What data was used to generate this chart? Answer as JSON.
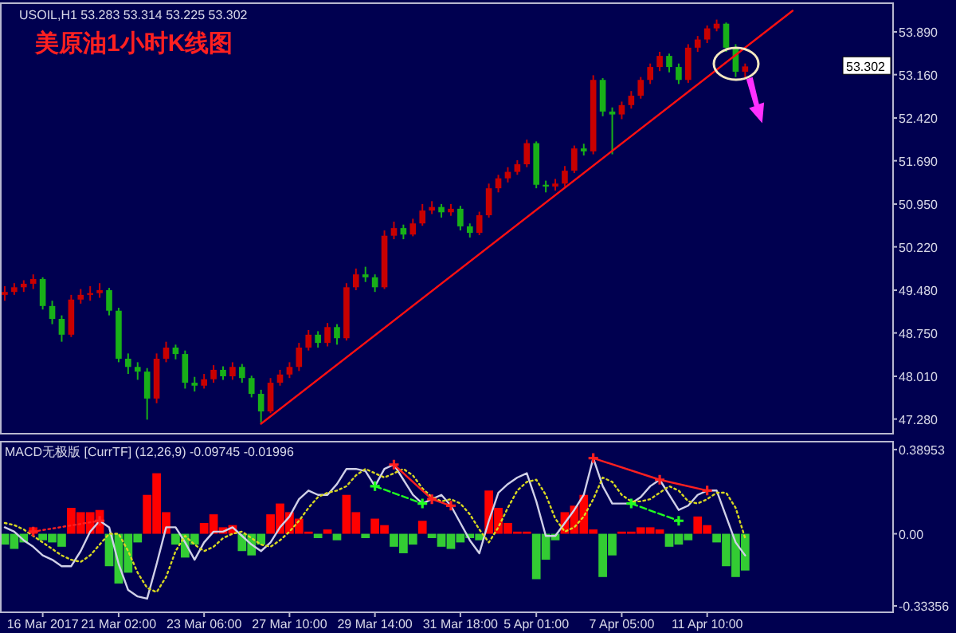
{
  "chart_data": [
    {
      "type": "candlestick",
      "title": "美原油1小时K线图",
      "subtitle": "USOIL,H1 53.283 53.314 53.225 53.302",
      "categories": [
        null,
        null,
        null,
        null,
        null,
        null,
        null,
        null,
        null,
        null,
        null,
        null,
        null,
        null,
        null,
        null,
        null,
        null,
        null,
        null,
        null,
        null,
        null,
        null,
        null,
        null,
        null,
        null,
        null,
        null,
        null,
        null,
        null,
        null,
        null,
        null,
        null,
        null,
        null,
        null,
        null,
        null,
        null,
        null,
        null,
        null,
        null,
        null,
        null,
        null,
        null,
        null,
        null,
        null,
        null,
        null,
        null,
        null,
        null,
        null,
        null,
        null,
        null,
        null,
        null,
        null,
        null,
        null,
        null,
        null,
        null,
        null,
        null,
        null,
        null,
        null,
        null,
        null,
        null,
        null,
        null,
        null,
        null,
        null,
        null,
        null,
        null,
        null,
        null,
        null,
        null,
        null,
        null,
        null
      ],
      "ohlc": [
        [
          49.4,
          49.55,
          49.3,
          49.45
        ],
        [
          49.45,
          49.6,
          49.4,
          49.53
        ],
        [
          49.53,
          49.65,
          49.45,
          49.59
        ],
        [
          49.59,
          49.75,
          49.5,
          49.67
        ],
        [
          49.67,
          49.7,
          49.15,
          49.21
        ],
        [
          49.21,
          49.3,
          48.9,
          48.99
        ],
        [
          48.99,
          49.05,
          48.6,
          48.72
        ],
        [
          48.72,
          49.4,
          48.68,
          49.32
        ],
        [
          49.32,
          49.5,
          49.25,
          49.4
        ],
        [
          49.4,
          49.55,
          49.3,
          49.43
        ],
        [
          49.43,
          49.6,
          49.35,
          49.48
        ],
        [
          49.48,
          49.52,
          49.05,
          49.13
        ],
        [
          49.13,
          49.18,
          48.25,
          48.31
        ],
        [
          48.31,
          48.4,
          48.05,
          48.17
        ],
        [
          48.17,
          48.25,
          47.95,
          48.09
        ],
        [
          48.09,
          48.15,
          47.27,
          47.63
        ],
        [
          47.63,
          48.4,
          47.55,
          48.31
        ],
        [
          48.31,
          48.6,
          48.25,
          48.5
        ],
        [
          48.5,
          48.55,
          48.3,
          48.39
        ],
        [
          48.39,
          48.45,
          47.8,
          47.9
        ],
        [
          47.9,
          48.0,
          47.75,
          47.85
        ],
        [
          47.85,
          48.05,
          47.8,
          47.96
        ],
        [
          47.96,
          48.2,
          47.9,
          48.12
        ],
        [
          48.12,
          48.18,
          47.95,
          48.01
        ],
        [
          48.01,
          48.25,
          47.95,
          48.17
        ],
        [
          48.17,
          48.22,
          47.9,
          47.98
        ],
        [
          47.98,
          48.02,
          47.65,
          47.71
        ],
        [
          47.71,
          47.78,
          47.22,
          47.41
        ],
        [
          47.41,
          47.98,
          47.38,
          47.9
        ],
        [
          47.9,
          48.12,
          47.85,
          48.04
        ],
        [
          48.04,
          48.25,
          47.98,
          48.17
        ],
        [
          48.17,
          48.58,
          48.1,
          48.5
        ],
        [
          48.5,
          48.8,
          48.45,
          48.72
        ],
        [
          48.72,
          48.78,
          48.5,
          48.58
        ],
        [
          48.58,
          48.92,
          48.52,
          48.85
        ],
        [
          48.85,
          48.9,
          48.55,
          48.66
        ],
        [
          48.66,
          49.6,
          48.62,
          49.53
        ],
        [
          49.53,
          49.85,
          49.48,
          49.75
        ],
        [
          49.75,
          49.88,
          49.62,
          49.7
        ],
        [
          49.7,
          49.75,
          49.45,
          49.53
        ],
        [
          49.53,
          50.5,
          49.5,
          50.41
        ],
        [
          50.41,
          50.65,
          50.35,
          50.54
        ],
        [
          50.54,
          50.6,
          50.35,
          50.43
        ],
        [
          50.43,
          50.7,
          50.4,
          50.62
        ],
        [
          50.62,
          50.95,
          50.58,
          50.84
        ],
        [
          50.84,
          51.0,
          50.78,
          50.9
        ],
        [
          50.9,
          50.95,
          50.72,
          50.81
        ],
        [
          50.81,
          50.95,
          50.75,
          50.87
        ],
        [
          50.87,
          50.92,
          50.5,
          50.57
        ],
        [
          50.57,
          50.62,
          50.38,
          50.46
        ],
        [
          50.46,
          50.82,
          50.42,
          50.76
        ],
        [
          50.76,
          51.3,
          50.72,
          51.22
        ],
        [
          51.22,
          51.45,
          51.15,
          51.39
        ],
        [
          51.39,
          51.58,
          51.32,
          51.5
        ],
        [
          51.5,
          51.7,
          51.45,
          51.63
        ],
        [
          51.63,
          52.05,
          51.58,
          51.99
        ],
        [
          51.99,
          52.02,
          51.22,
          51.28
        ],
        [
          51.28,
          51.35,
          51.15,
          51.25
        ],
        [
          51.25,
          51.38,
          51.18,
          51.3
        ],
        [
          51.3,
          51.6,
          51.25,
          51.52
        ],
        [
          51.52,
          51.95,
          51.48,
          51.9
        ],
        [
          51.9,
          51.98,
          51.78,
          51.85
        ],
        [
          51.85,
          53.15,
          51.8,
          53.07
        ],
        [
          53.07,
          53.1,
          52.45,
          52.53
        ],
        [
          52.53,
          52.6,
          51.8,
          52.48
        ],
        [
          52.48,
          52.7,
          52.4,
          52.64
        ],
        [
          52.64,
          52.88,
          52.58,
          52.8
        ],
        [
          52.8,
          53.12,
          52.75,
          53.07
        ],
        [
          53.07,
          53.35,
          53.0,
          53.29
        ],
        [
          53.29,
          53.55,
          53.22,
          53.48
        ],
        [
          53.48,
          53.52,
          53.2,
          53.29
        ],
        [
          53.29,
          53.35,
          53.0,
          53.07
        ],
        [
          53.07,
          53.68,
          53.02,
          53.62
        ],
        [
          53.62,
          53.82,
          53.55,
          53.76
        ],
        [
          53.76,
          54.0,
          53.7,
          53.95
        ],
        [
          53.95,
          54.1,
          53.9,
          54.03
        ],
        [
          54.03,
          54.05,
          53.55,
          53.62
        ],
        [
          53.62,
          53.68,
          53.12,
          53.21
        ],
        [
          53.21,
          53.35,
          53.1,
          53.3
        ],
        null,
        null,
        null,
        null,
        null,
        null,
        null,
        null,
        null,
        null,
        null,
        null,
        null,
        null,
        null
      ],
      "series": [
        {
          "type": "line",
          "color": "#ff1010",
          "values": [
            null,
            null,
            null,
            null,
            null,
            null,
            null,
            null,
            null,
            null,
            null,
            null,
            null,
            null,
            null,
            null,
            null,
            null,
            null,
            null,
            null,
            null,
            null,
            null,
            null,
            null,
            null,
            47.2,
            null,
            null,
            null,
            null,
            null,
            null,
            null,
            null,
            null,
            null,
            null,
            null,
            null,
            null,
            null,
            null,
            null,
            null,
            null,
            null,
            null,
            null,
            null,
            null,
            null,
            null,
            null,
            null,
            null,
            null,
            null,
            null,
            null,
            null,
            null,
            null,
            null,
            null,
            null,
            null,
            null,
            null,
            null,
            null,
            null,
            null,
            null,
            null,
            null,
            null,
            null,
            null,
            null,
            null,
            null,
            54.25,
            null,
            null,
            null,
            null,
            null,
            null,
            null,
            null,
            null,
            null
          ]
        }
      ],
      "ylim": [
        47.03,
        54.38
      ],
      "yticks": [
        {
          "value": 53.89,
          "label": "53.890"
        },
        {
          "value": 53.16,
          "label": "53.160"
        },
        {
          "value": 52.42,
          "label": "52.420"
        },
        {
          "value": 51.69,
          "label": "51.690"
        },
        {
          "value": 50.95,
          "label": "50.950"
        },
        {
          "value": 50.22,
          "label": "50.220"
        },
        {
          "value": 49.48,
          "label": "49.480"
        },
        {
          "value": 48.75,
          "label": "48.750"
        },
        {
          "value": 48.01,
          "label": "48.010"
        },
        {
          "value": 47.28,
          "label": "47.280"
        }
      ],
      "annotations": [
        {
          "text": "53.302",
          "y": 53.302
        }
      ]
    },
    {
      "type": "bar",
      "title": "MACD无极版 [CurrTF] (12,26,9) -0.09745 -0.01996",
      "categories": [
        null,
        null,
        null,
        null,
        "16 Mar 2017",
        null,
        null,
        null,
        null,
        null,
        null,
        null,
        "21 Mar 02:00",
        null,
        null,
        null,
        null,
        null,
        null,
        null,
        null,
        "23 Mar 06:00",
        null,
        null,
        null,
        null,
        null,
        null,
        null,
        null,
        "27 Mar 10:00",
        null,
        null,
        null,
        null,
        null,
        null,
        null,
        null,
        "29 Mar 14:00",
        null,
        null,
        null,
        null,
        null,
        null,
        null,
        null,
        "31 Mar 18:00",
        null,
        null,
        null,
        null,
        null,
        null,
        null,
        "5 Apr 01:00",
        null,
        null,
        null,
        null,
        null,
        null,
        null,
        null,
        "7 Apr 05:00",
        null,
        null,
        null,
        null,
        null,
        null,
        null,
        null,
        "11 Apr 10:00",
        null,
        null,
        null,
        null,
        null,
        null,
        null,
        null,
        null,
        null,
        null,
        null,
        null,
        null,
        null,
        null,
        null,
        null,
        null
      ],
      "series": [
        {
          "type": "bar",
          "colors": [
            "#33cc33",
            "#33cc33",
            "#33cc33",
            "#ff0000",
            "#33cc33",
            "#33cc33",
            "#33cc33",
            "#ff0000",
            "#ff0000",
            "#ff0000",
            "#ff0000",
            "#33cc33",
            "#33cc33",
            "#33cc33",
            "#33cc33",
            "#ff0000",
            "#ff0000",
            "#ff0000",
            "#33cc33",
            "#33cc33",
            "#33cc33",
            "#ff0000",
            "#ff0000",
            "#ff0000",
            "#ff0000",
            "#33cc33",
            "#33cc33",
            "#33cc33",
            "#ff0000",
            "#ff0000",
            "#ff0000",
            "#ff0000",
            "#ff0000",
            "#33cc33",
            "#ff0000",
            "#33cc33",
            "#ff0000",
            "#ff0000",
            "#33cc33",
            "#ff0000",
            "#ff0000",
            "#33cc33",
            "#33cc33",
            "#33cc33",
            "#ff0000",
            "#33cc33",
            "#33cc33",
            "#33cc33",
            "#33cc33",
            "#33cc33",
            "#33cc33",
            "#ff0000",
            "#ff0000",
            "#ff0000",
            "#ff0000",
            "#ff0000",
            "#33cc33",
            "#33cc33",
            "#33cc33",
            "#ff0000",
            "#ff0000",
            "#ff0000",
            "#ff0000",
            "#33cc33",
            "#33cc33",
            "#ff0000",
            "#ff0000",
            "#ff0000",
            "#ff0000",
            "#ff0000",
            "#33cc33",
            "#33cc33",
            "#33cc33",
            "#ff0000",
            "#ff0000",
            "#33cc33",
            "#33cc33",
            "#33cc33",
            "#33cc33",
            null,
            null,
            null,
            null,
            null,
            null,
            null,
            null,
            null,
            null,
            null,
            null,
            null,
            null,
            null
          ],
          "values": [
            -0.05,
            -0.07,
            -0.04,
            0.03,
            -0.03,
            -0.04,
            -0.06,
            0.12,
            0.1,
            0.1,
            0.11,
            -0.15,
            -0.23,
            -0.18,
            -0.04,
            0.18,
            0.28,
            0.1,
            -0.05,
            -0.11,
            -0.05,
            0.05,
            0.09,
            0.03,
            0.04,
            -0.08,
            -0.1,
            -0.05,
            0.09,
            0.14,
            0.1,
            0.07,
            0.01,
            -0.02,
            0.02,
            -0.03,
            0.18,
            0.1,
            -0.02,
            0.07,
            0.04,
            -0.06,
            -0.09,
            -0.05,
            0.06,
            -0.02,
            -0.06,
            -0.07,
            -0.04,
            -0.02,
            -0.03,
            0.2,
            0.12,
            0.05,
            0.01,
            0.01,
            -0.21,
            -0.12,
            -0.03,
            0.1,
            0.13,
            0.18,
            0.02,
            -0.2,
            -0.1,
            0.01,
            0.01,
            0.03,
            0.03,
            0.02,
            -0.06,
            -0.05,
            -0.03,
            0.08,
            0.04,
            -0.04,
            -0.15,
            -0.2,
            -0.17,
            null,
            null,
            null,
            null,
            null,
            null,
            null,
            null,
            null,
            null,
            null,
            null,
            null,
            null,
            null
          ]
        },
        {
          "type": "line",
          "color": "#d0d0e8",
          "values": [
            0.03,
            0.01,
            -0.03,
            -0.06,
            -0.1,
            -0.12,
            -0.15,
            -0.15,
            -0.08,
            0.01,
            0.06,
            0.03,
            -0.14,
            -0.26,
            -0.29,
            -0.3,
            -0.14,
            0.03,
            0.03,
            -0.04,
            -0.12,
            -0.04,
            0.01,
            0.01,
            0.03,
            -0.01,
            -0.05,
            -0.08,
            -0.04,
            0.03,
            0.08,
            0.16,
            0.2,
            0.18,
            0.18,
            0.23,
            0.3,
            0.3,
            0.29,
            0.22,
            0.3,
            0.32,
            0.25,
            0.18,
            0.14,
            0.16,
            0.18,
            0.13,
            0.05,
            -0.03,
            -0.09,
            0.06,
            0.19,
            0.23,
            0.26,
            0.28,
            0.15,
            -0.01,
            -0.01,
            0.05,
            0.11,
            0.18,
            0.35,
            0.22,
            0.14,
            0.14,
            0.14,
            0.17,
            0.22,
            0.25,
            0.18,
            0.11,
            0.13,
            0.18,
            0.2,
            0.2,
            0.08,
            -0.04,
            -0.1,
            null,
            null,
            null,
            null,
            null,
            null,
            null,
            null,
            null,
            null,
            null,
            null,
            null,
            null,
            null
          ]
        },
        {
          "type": "line",
          "color": "#d8d820",
          "line_style": "dotted",
          "values": [
            0.05,
            0.04,
            0.02,
            -0.01,
            -0.04,
            -0.07,
            -0.1,
            -0.12,
            -0.13,
            -0.1,
            -0.05,
            0.0,
            0.0,
            -0.08,
            -0.18,
            -0.25,
            -0.27,
            -0.2,
            -0.08,
            -0.01,
            -0.05,
            -0.08,
            -0.06,
            -0.02,
            0.0,
            0.01,
            -0.02,
            -0.05,
            -0.06,
            -0.03,
            0.01,
            0.06,
            0.12,
            0.17,
            0.19,
            0.2,
            0.22,
            0.27,
            0.3,
            0.28,
            0.26,
            0.28,
            0.3,
            0.27,
            0.21,
            0.17,
            0.15,
            0.16,
            0.14,
            0.09,
            0.02,
            -0.04,
            0.03,
            0.12,
            0.2,
            0.24,
            0.25,
            0.18,
            0.07,
            0.01,
            0.03,
            0.08,
            0.16,
            0.26,
            0.24,
            0.18,
            0.15,
            0.15,
            0.16,
            0.19,
            0.22,
            0.2,
            0.15,
            0.14,
            0.16,
            0.19,
            0.19,
            0.12,
            -0.02,
            null,
            null,
            null,
            null,
            null,
            null,
            null,
            null,
            null,
            null,
            null,
            null,
            null,
            null,
            null
          ]
        },
        {
          "type": "line",
          "color": "#ff2020",
          "line_style": "dotted",
          "marker": "cross",
          "values": [
            null,
            null,
            null,
            0.01,
            null,
            null,
            null,
            null,
            null,
            null,
            0.06,
            null,
            null,
            null,
            null,
            null,
            null,
            null,
            null,
            null,
            null,
            null,
            null,
            null,
            null,
            null,
            null,
            null,
            null,
            null,
            null,
            null,
            null,
            null,
            null,
            null,
            null,
            null,
            null,
            null,
            null,
            null,
            null,
            null,
            null,
            null,
            null,
            null,
            null,
            null,
            null,
            null,
            null,
            null,
            null,
            null,
            null,
            null,
            null,
            null,
            null,
            null,
            null,
            null,
            null,
            null,
            null,
            null,
            null,
            null,
            null,
            null,
            null,
            null,
            null,
            null,
            null,
            null,
            null,
            null,
            null,
            null,
            null,
            null,
            null,
            null,
            null,
            null,
            null,
            null,
            null,
            null,
            null,
            null
          ]
        },
        {
          "type": "line",
          "color": "#ff2020",
          "marker": "cross",
          "values": [
            null,
            null,
            null,
            null,
            null,
            null,
            null,
            null,
            null,
            null,
            null,
            null,
            null,
            null,
            null,
            null,
            null,
            null,
            null,
            null,
            null,
            null,
            null,
            null,
            null,
            null,
            null,
            null,
            null,
            null,
            null,
            null,
            null,
            null,
            null,
            null,
            null,
            null,
            null,
            null,
            null,
            0.32,
            null,
            null,
            null,
            0.16,
            null,
            0.13,
            null,
            null,
            null,
            null,
            null,
            null,
            null,
            null,
            null,
            null,
            null,
            null,
            null,
            null,
            null,
            null,
            null,
            null,
            null,
            null,
            null,
            null,
            null,
            null,
            null,
            null,
            null,
            null,
            null,
            null,
            null,
            null,
            null,
            null,
            null,
            null,
            null,
            null,
            null,
            null,
            null,
            null,
            null,
            null,
            null,
            null
          ]
        },
        {
          "type": "line",
          "color": "#20ff20",
          "line_style": "dashed",
          "marker": "cross",
          "values": [
            null,
            null,
            null,
            null,
            null,
            null,
            null,
            null,
            null,
            null,
            null,
            null,
            null,
            null,
            null,
            null,
            null,
            null,
            null,
            null,
            null,
            null,
            null,
            null,
            null,
            null,
            null,
            null,
            null,
            null,
            null,
            null,
            null,
            null,
            null,
            null,
            null,
            null,
            null,
            0.22,
            null,
            null,
            null,
            null,
            0.14,
            null,
            null,
            null,
            null,
            null,
            null,
            null,
            null,
            null,
            null,
            null,
            null,
            null,
            null,
            null,
            null,
            null,
            null,
            null,
            null,
            null,
            null,
            null,
            null,
            null,
            null,
            null,
            null,
            null,
            null,
            null,
            null,
            null,
            null,
            null,
            null,
            null,
            null,
            null,
            null,
            null,
            null,
            null,
            null,
            null,
            null,
            null,
            null,
            null
          ]
        },
        {
          "type": "line",
          "color": "#ff2020",
          "marker": "cross",
          "values": [
            null,
            null,
            null,
            null,
            null,
            null,
            null,
            null,
            null,
            null,
            null,
            null,
            null,
            null,
            null,
            null,
            null,
            null,
            null,
            null,
            null,
            null,
            null,
            null,
            null,
            null,
            null,
            null,
            null,
            null,
            null,
            null,
            null,
            null,
            null,
            null,
            null,
            null,
            null,
            null,
            null,
            null,
            null,
            null,
            null,
            null,
            null,
            null,
            null,
            null,
            null,
            null,
            null,
            null,
            null,
            null,
            null,
            null,
            null,
            null,
            null,
            null,
            0.35,
            null,
            null,
            null,
            null,
            null,
            null,
            0.25,
            null,
            null,
            null,
            null,
            0.2,
            null,
            null,
            null,
            null,
            null,
            null,
            null,
            null,
            null,
            null,
            null,
            null,
            null,
            null,
            null,
            null,
            null,
            null,
            null
          ]
        },
        {
          "type": "line",
          "color": "#20ff20",
          "line_style": "dashed",
          "marker": "cross",
          "values": [
            null,
            null,
            null,
            null,
            null,
            null,
            null,
            null,
            null,
            null,
            null,
            null,
            null,
            null,
            null,
            null,
            null,
            null,
            null,
            null,
            null,
            null,
            null,
            null,
            null,
            null,
            null,
            null,
            null,
            null,
            null,
            null,
            null,
            null,
            null,
            null,
            null,
            null,
            null,
            null,
            null,
            null,
            null,
            null,
            null,
            null,
            null,
            null,
            null,
            null,
            null,
            null,
            null,
            null,
            null,
            null,
            null,
            null,
            null,
            null,
            null,
            null,
            null,
            null,
            null,
            null,
            0.14,
            null,
            null,
            null,
            null,
            0.06,
            null,
            null,
            null,
            null,
            null,
            null,
            null,
            null,
            null,
            null,
            null,
            null,
            null,
            null,
            null,
            null,
            null,
            null,
            null,
            null,
            null,
            null
          ]
        }
      ],
      "ylim": [
        -0.363,
        0.426
      ],
      "yticks": [
        {
          "value": 0.38953,
          "label": "0.38953"
        },
        {
          "value": 0,
          "label": "0.00"
        },
        {
          "value": -0.33356,
          "label": "-0.33356"
        }
      ]
    }
  ]
}
